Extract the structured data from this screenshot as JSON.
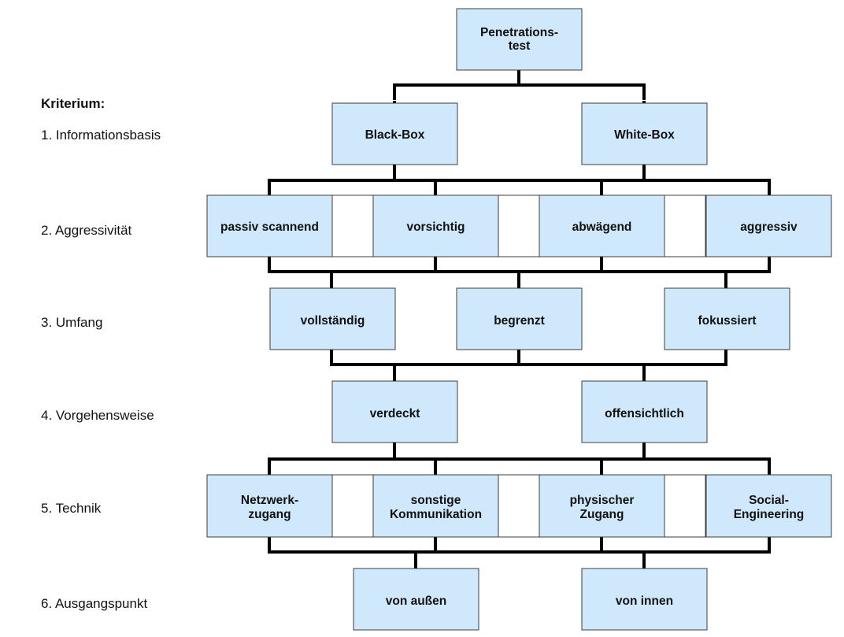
{
  "criteria_heading": "Kriterium:",
  "criteria": [
    "1. Informationsbasis",
    "2. Aggressivität",
    "3. Umfang",
    "4. Vorgehensweise",
    "5. Technik",
    "6. Ausgangspunkt"
  ],
  "root": [
    "Penetrations-",
    "test"
  ],
  "levels": [
    {
      "criterion": "Informationsbasis",
      "options": [
        [
          "Black-Box"
        ],
        [
          "White-Box"
        ]
      ]
    },
    {
      "criterion": "Aggressivität",
      "options": [
        [
          "passiv scannend"
        ],
        [
          "vorsichtig"
        ],
        [
          "abwägend"
        ],
        [
          "aggressiv"
        ]
      ]
    },
    {
      "criterion": "Umfang",
      "options": [
        [
          "vollständig"
        ],
        [
          "begrenzt"
        ],
        [
          "fokussiert"
        ]
      ]
    },
    {
      "criterion": "Vorgehensweise",
      "options": [
        [
          "verdeckt"
        ],
        [
          "offensichtlich"
        ]
      ]
    },
    {
      "criterion": "Technik",
      "options": [
        [
          "Netzwerk-",
          "zugang"
        ],
        [
          "sonstige",
          "Kommunikation"
        ],
        [
          "physischer",
          "Zugang"
        ],
        [
          "Social-",
          "Engineering"
        ]
      ]
    },
    {
      "criterion": "Ausgangspunkt",
      "options": [
        [
          "von außen"
        ],
        [
          "von innen"
        ]
      ]
    }
  ],
  "colors": {
    "box_fill": "#cfe8fb",
    "box_border": "#3c3c3c",
    "connector": "#000000"
  }
}
